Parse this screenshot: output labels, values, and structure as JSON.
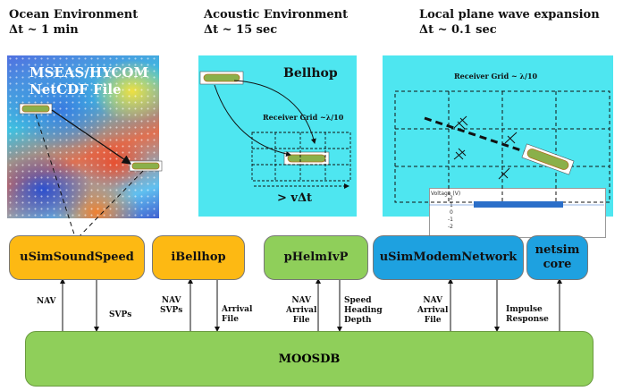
{
  "headers": {
    "ocean": {
      "title": "Ocean Environment",
      "dt": "Δt ~ 1 min"
    },
    "acoustic": {
      "title": "Acoustic Environment",
      "dt": "Δt ~ 15 sec"
    },
    "local": {
      "title": "Local plane wave expansion",
      "dt": "Δt ~ 0.1 sec"
    }
  },
  "ocean_panel": {
    "line1": "MSEAS/HYCOM",
    "line2": "NetCDF File"
  },
  "acoustic_panel": {
    "title": "Bellhop",
    "grid_label": "Receiver Grid ~λ/10",
    "span_label": "> vΔt"
  },
  "local_panel": {
    "grid_label": "Receiver Grid ~ λ/10",
    "inset_ylabel": "Voltage (V)",
    "inset_ticks": [
      "2",
      "1",
      "0",
      "-1",
      "-2"
    ]
  },
  "modules": [
    {
      "id": "usimsoundspeed",
      "label": "uSimSoundSpeed",
      "color": "#fdb913"
    },
    {
      "id": "ibellhop",
      "label": "iBellhop",
      "color": "#fdb913"
    },
    {
      "id": "phelmivp",
      "label": "pHelmIvP",
      "color": "#8fcf5a"
    },
    {
      "id": "usimmodemnetwork",
      "label": "uSimModemNetwork",
      "color": "#1ea1e0"
    },
    {
      "id": "netsim",
      "label_line1": "netsim",
      "label_line2": "core",
      "color": "#1ea1e0"
    }
  ],
  "moosdb": {
    "label": "MOOSDB",
    "color": "#8fcf5a"
  },
  "flows": {
    "sss_nav": "NAV",
    "sss_svps": "SVPs",
    "bh_nav": "NAV",
    "bh_svps": "SVPs",
    "bh_arrival_1": "Arrival",
    "bh_arrival_2": "File",
    "ph_nav": "NAV",
    "ph_arrival_1": "Arrival",
    "ph_arrival_2": "File",
    "ph_out_1": "Speed",
    "ph_out_2": "Heading",
    "ph_out_3": "Depth",
    "um_nav": "NAV",
    "um_arrival_1": "Arrival",
    "um_arrival_2": "File",
    "ns_out_1": "Impulse",
    "ns_out_2": "Response"
  }
}
